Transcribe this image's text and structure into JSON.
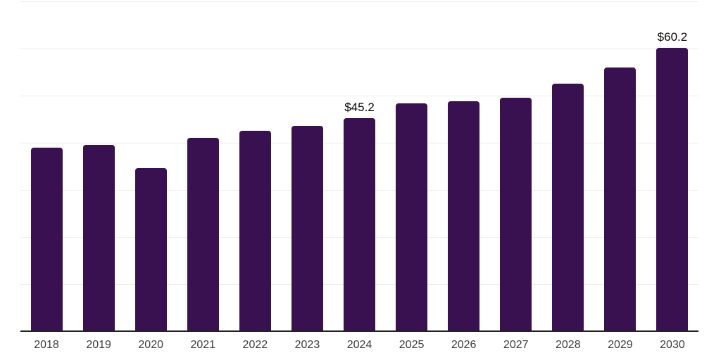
{
  "chart": {
    "background_color": "#ffffff",
    "bar_color": "#3a1150",
    "grid_color": "#ececec",
    "axis_color": "#222222",
    "tick_label_color": "#3d3d3d",
    "value_label_color": "#0a0a0a"
  },
  "chart_data": {
    "type": "bar",
    "title": "",
    "xlabel": "",
    "ylabel": "",
    "categories": [
      "2018",
      "2019",
      "2020",
      "2021",
      "2022",
      "2023",
      "2024",
      "2025",
      "2026",
      "2027",
      "2028",
      "2029",
      "2030"
    ],
    "values": [
      39.0,
      39.5,
      34.7,
      41.1,
      42.6,
      43.6,
      45.2,
      48.3,
      48.8,
      49.5,
      52.5,
      55.9,
      60.2
    ],
    "data_labels": [
      {
        "category": "2024",
        "text": "$45.2"
      },
      {
        "category": "2030",
        "text": "$60.2"
      }
    ],
    "ylim": [
      0,
      70
    ],
    "y_gridline_step": 10,
    "y_axis_labels_visible": false,
    "grid": "horizontal",
    "legend": "none"
  }
}
